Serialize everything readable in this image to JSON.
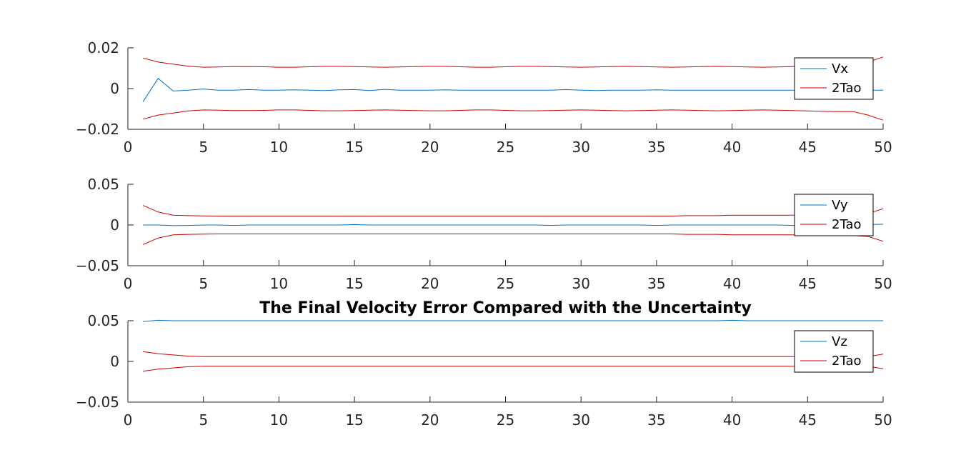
{
  "colors": {
    "signal": "#0072BD",
    "bound": "#CC0000",
    "axis": "#262626",
    "background": "#ffffff"
  },
  "chart_data": [
    {
      "type": "line",
      "title": "",
      "xlabel": "",
      "ylabel": "",
      "xlim": [
        0,
        50
      ],
      "ylim": [
        -0.02,
        0.02
      ],
      "x_ticks": [
        0,
        5,
        10,
        15,
        20,
        25,
        30,
        35,
        40,
        45,
        50
      ],
      "x_tick_labels": [
        "0",
        "5",
        "10",
        "15",
        "20",
        "25",
        "30",
        "35",
        "40",
        "45",
        "50"
      ],
      "y_ticks": [
        -0.02,
        0,
        0.02
      ],
      "y_tick_labels": [
        "−0.02",
        "0",
        "0.02"
      ],
      "grid": false,
      "legend_position": "top-right",
      "x": [
        1,
        2,
        3,
        4,
        5,
        6,
        7,
        8,
        9,
        10,
        11,
        12,
        13,
        14,
        15,
        16,
        17,
        18,
        19,
        20,
        21,
        22,
        23,
        24,
        25,
        26,
        27,
        28,
        29,
        30,
        31,
        32,
        33,
        34,
        35,
        36,
        37,
        38,
        39,
        40,
        41,
        42,
        43,
        44,
        45,
        46,
        47,
        48,
        49,
        50
      ],
      "series": [
        {
          "name": "Vx",
          "role": "signal",
          "values": [
            -0.0065,
            0.005,
            -0.0012,
            -0.0008,
            -0.0002,
            -0.0008,
            -0.0008,
            -0.0005,
            -0.0008,
            -0.0008,
            -0.0006,
            -0.0008,
            -0.001,
            -0.0006,
            -0.0005,
            -0.001,
            -0.0004,
            -0.0008,
            -0.0008,
            -0.0008,
            -0.0006,
            -0.0008,
            -0.0008,
            -0.0008,
            -0.0008,
            -0.0008,
            -0.0008,
            -0.0008,
            -0.0005,
            -0.0008,
            -0.001,
            -0.0008,
            -0.0008,
            -0.0008,
            -0.0006,
            -0.0008,
            -0.0008,
            -0.0008,
            -0.0008,
            -0.0008,
            -0.0008,
            -0.0008,
            -0.0008,
            -0.0008,
            -0.0008,
            -0.0008,
            -0.0008,
            -0.0008,
            -0.0008,
            -0.0008
          ]
        },
        {
          "name": "2Tao",
          "role": "bound",
          "values": [
            0.015,
            0.013,
            0.012,
            0.011,
            0.0105,
            0.0106,
            0.0108,
            0.0108,
            0.0107,
            0.0105,
            0.0105,
            0.0107,
            0.0109,
            0.0109,
            0.0108,
            0.0106,
            0.0105,
            0.0106,
            0.0108,
            0.0109,
            0.0109,
            0.0107,
            0.0105,
            0.0105,
            0.0107,
            0.0109,
            0.0109,
            0.0108,
            0.0106,
            0.0105,
            0.0106,
            0.0108,
            0.0109,
            0.0108,
            0.0106,
            0.0105,
            0.0106,
            0.0108,
            0.0109,
            0.0108,
            0.0106,
            0.0105,
            0.0106,
            0.0108,
            0.011,
            0.0112,
            0.0113,
            0.0113,
            0.013,
            0.0155
          ]
        },
        {
          "name": "",
          "role": "bound",
          "values": [
            -0.015,
            -0.013,
            -0.012,
            -0.011,
            -0.0105,
            -0.0106,
            -0.0108,
            -0.0108,
            -0.0107,
            -0.0105,
            -0.0105,
            -0.0107,
            -0.0109,
            -0.0109,
            -0.0108,
            -0.0106,
            -0.0105,
            -0.0106,
            -0.0108,
            -0.0109,
            -0.0109,
            -0.0107,
            -0.0105,
            -0.0105,
            -0.0107,
            -0.0109,
            -0.0109,
            -0.0108,
            -0.0106,
            -0.0105,
            -0.0106,
            -0.0108,
            -0.0109,
            -0.0108,
            -0.0106,
            -0.0105,
            -0.0106,
            -0.0108,
            -0.0109,
            -0.0108,
            -0.0106,
            -0.0105,
            -0.0106,
            -0.0108,
            -0.011,
            -0.0112,
            -0.0113,
            -0.0113,
            -0.013,
            -0.0155
          ]
        }
      ]
    },
    {
      "type": "line",
      "title": "",
      "xlabel": "",
      "ylabel": "",
      "xlim": [
        0,
        50
      ],
      "ylim": [
        -0.05,
        0.05
      ],
      "x_ticks": [
        0,
        5,
        10,
        15,
        20,
        25,
        30,
        35,
        40,
        45,
        50
      ],
      "x_tick_labels": [
        "0",
        "5",
        "10",
        "15",
        "20",
        "25",
        "30",
        "35",
        "40",
        "45",
        "50"
      ],
      "y_ticks": [
        -0.05,
        0,
        0.05
      ],
      "y_tick_labels": [
        "−0.05",
        "0",
        "0.05"
      ],
      "grid": false,
      "legend_position": "top-right",
      "x": [
        1,
        2,
        3,
        4,
        5,
        6,
        7,
        8,
        9,
        10,
        11,
        12,
        13,
        14,
        15,
        16,
        17,
        18,
        19,
        20,
        21,
        22,
        23,
        24,
        25,
        26,
        27,
        28,
        29,
        30,
        31,
        32,
        33,
        34,
        35,
        36,
        37,
        38,
        39,
        40,
        41,
        42,
        43,
        44,
        45,
        46,
        47,
        48,
        49,
        50
      ],
      "series": [
        {
          "name": "Vy",
          "role": "signal",
          "values": [
            0,
            0,
            -0.0008,
            -0.0005,
            0,
            0,
            -0.0005,
            0,
            0,
            0,
            0,
            0,
            0,
            0,
            0.0005,
            0,
            0,
            0,
            0,
            0,
            0,
            0,
            0,
            0,
            0,
            0,
            0,
            -0.0005,
            0,
            0,
            0,
            0,
            0,
            0,
            -0.0005,
            0,
            0,
            0,
            0,
            0,
            0,
            0,
            0,
            -0.0005,
            0,
            0,
            0,
            0.0005,
            0.0005,
            0.001
          ]
        },
        {
          "name": "2Tao",
          "role": "bound",
          "values": [
            0.024,
            0.016,
            0.012,
            0.0115,
            0.0112,
            0.011,
            0.011,
            0.011,
            0.011,
            0.011,
            0.011,
            0.011,
            0.011,
            0.011,
            0.011,
            0.011,
            0.011,
            0.011,
            0.011,
            0.011,
            0.011,
            0.011,
            0.011,
            0.011,
            0.011,
            0.011,
            0.011,
            0.011,
            0.011,
            0.011,
            0.011,
            0.011,
            0.011,
            0.011,
            0.011,
            0.011,
            0.0115,
            0.0115,
            0.0115,
            0.012,
            0.012,
            0.012,
            0.012,
            0.012,
            0.0125,
            0.0125,
            0.0125,
            0.013,
            0.014,
            0.02
          ]
        },
        {
          "name": "",
          "role": "bound",
          "values": [
            -0.024,
            -0.016,
            -0.012,
            -0.0115,
            -0.0112,
            -0.011,
            -0.011,
            -0.011,
            -0.011,
            -0.011,
            -0.011,
            -0.011,
            -0.011,
            -0.011,
            -0.011,
            -0.011,
            -0.011,
            -0.011,
            -0.011,
            -0.011,
            -0.011,
            -0.011,
            -0.011,
            -0.011,
            -0.011,
            -0.011,
            -0.011,
            -0.011,
            -0.011,
            -0.011,
            -0.011,
            -0.011,
            -0.011,
            -0.011,
            -0.011,
            -0.011,
            -0.0115,
            -0.0115,
            -0.0115,
            -0.012,
            -0.012,
            -0.012,
            -0.012,
            -0.012,
            -0.0125,
            -0.0125,
            -0.0125,
            -0.013,
            -0.014,
            -0.02
          ]
        }
      ]
    },
    {
      "type": "line",
      "title": "The Final Velocity Error Compared with the Uncertainty",
      "xlabel": "",
      "ylabel": "",
      "xlim": [
        0,
        50
      ],
      "ylim": [
        -0.05,
        0.05
      ],
      "x_ticks": [
        0,
        5,
        10,
        15,
        20,
        25,
        30,
        35,
        40,
        45,
        50
      ],
      "x_tick_labels": [
        "0",
        "5",
        "10",
        "15",
        "20",
        "25",
        "30",
        "35",
        "40",
        "45",
        "50"
      ],
      "y_ticks": [
        -0.05,
        0,
        0.05
      ],
      "y_tick_labels": [
        "−0.05",
        "0",
        "0.05"
      ],
      "grid": false,
      "legend_position": "top-right",
      "x": [
        1,
        2,
        3,
        4,
        5,
        6,
        7,
        8,
        9,
        10,
        11,
        12,
        13,
        14,
        15,
        16,
        17,
        18,
        19,
        20,
        21,
        22,
        23,
        24,
        25,
        26,
        27,
        28,
        29,
        30,
        31,
        32,
        33,
        34,
        35,
        36,
        37,
        38,
        39,
        40,
        41,
        42,
        43,
        44,
        45,
        46,
        47,
        48,
        49,
        50
      ],
      "series": [
        {
          "name": "Vz",
          "role": "signal",
          "values": [
            0.049,
            0.0505,
            0.05,
            0.05,
            0.05,
            0.05,
            0.05,
            0.05,
            0.05,
            0.05,
            0.05,
            0.05,
            0.05,
            0.05,
            0.05,
            0.05,
            0.05,
            0.05,
            0.05,
            0.05,
            0.05,
            0.05,
            0.05,
            0.05,
            0.05,
            0.05,
            0.05,
            0.05,
            0.05,
            0.05,
            0.05,
            0.05,
            0.05,
            0.05,
            0.05,
            0.05,
            0.05,
            0.05,
            0.05,
            0.0505,
            0.05,
            0.05,
            0.05,
            0.05,
            0.05,
            0.05,
            0.05,
            0.05,
            0.05,
            0.05
          ]
        },
        {
          "name": "2Tao",
          "role": "bound",
          "values": [
            0.012,
            0.0095,
            0.008,
            0.0065,
            0.006,
            0.006,
            0.006,
            0.006,
            0.006,
            0.006,
            0.006,
            0.006,
            0.006,
            0.006,
            0.006,
            0.006,
            0.006,
            0.006,
            0.006,
            0.006,
            0.006,
            0.006,
            0.006,
            0.006,
            0.006,
            0.006,
            0.006,
            0.006,
            0.006,
            0.006,
            0.006,
            0.006,
            0.006,
            0.006,
            0.006,
            0.006,
            0.006,
            0.006,
            0.006,
            0.006,
            0.006,
            0.006,
            0.006,
            0.006,
            0.006,
            0.006,
            0.006,
            0.006,
            0.006,
            0.009
          ]
        },
        {
          "name": "",
          "role": "bound",
          "values": [
            -0.012,
            -0.0095,
            -0.008,
            -0.0065,
            -0.006,
            -0.006,
            -0.006,
            -0.006,
            -0.006,
            -0.006,
            -0.006,
            -0.006,
            -0.006,
            -0.006,
            -0.006,
            -0.006,
            -0.006,
            -0.006,
            -0.006,
            -0.006,
            -0.006,
            -0.006,
            -0.006,
            -0.006,
            -0.006,
            -0.006,
            -0.006,
            -0.006,
            -0.006,
            -0.006,
            -0.006,
            -0.006,
            -0.006,
            -0.006,
            -0.006,
            -0.006,
            -0.006,
            -0.006,
            -0.006,
            -0.006,
            -0.006,
            -0.006,
            -0.006,
            -0.006,
            -0.006,
            -0.006,
            -0.006,
            -0.006,
            -0.006,
            -0.009
          ]
        }
      ]
    }
  ]
}
